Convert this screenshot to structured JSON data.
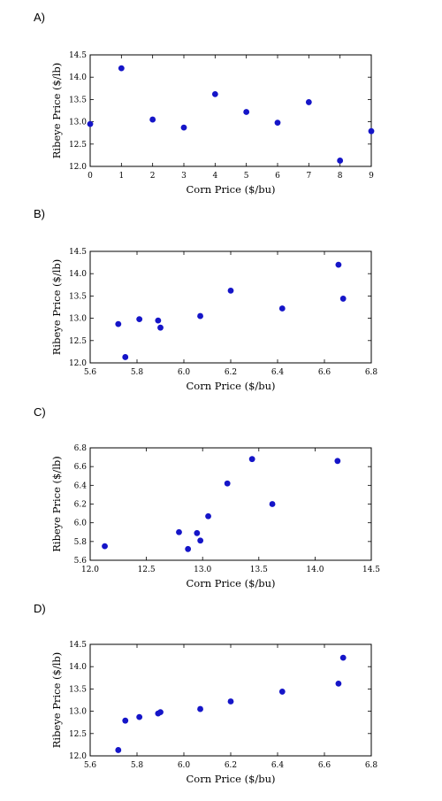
{
  "chart_data": [
    {
      "type": "scatter",
      "panel_label": "A)",
      "xlabel": "Corn Price ($/bu)",
      "ylabel": "Ribeye Price ($/lb)",
      "xlim": [
        0,
        9
      ],
      "ylim": [
        12.0,
        14.5
      ],
      "xticks": [
        "0",
        "1",
        "2",
        "3",
        "4",
        "5",
        "6",
        "7",
        "8",
        "9"
      ],
      "yticks": [
        "12.0",
        "12.5",
        "13.0",
        "13.5",
        "14.0",
        "14.5"
      ],
      "series": [
        {
          "x": [
            0,
            1,
            2,
            3,
            4,
            5,
            6,
            7,
            8,
            9
          ],
          "y": [
            12.95,
            14.2,
            13.05,
            12.87,
            13.62,
            13.22,
            12.98,
            13.44,
            12.13,
            12.79
          ]
        }
      ],
      "grid": false
    },
    {
      "type": "scatter",
      "panel_label": "B)",
      "xlabel": "Corn Price ($/bu)",
      "ylabel": "Ribeye Price ($/lb)",
      "xlim": [
        5.6,
        6.8
      ],
      "ylim": [
        12.0,
        14.5
      ],
      "xticks": [
        "5.6",
        "5.8",
        "6.0",
        "6.2",
        "6.4",
        "6.6",
        "6.8"
      ],
      "yticks": [
        "12.0",
        "12.5",
        "13.0",
        "13.5",
        "14.0",
        "14.5"
      ],
      "series": [
        {
          "x": [
            5.72,
            5.75,
            5.81,
            5.89,
            5.9,
            6.07,
            6.2,
            6.42,
            6.66,
            6.68
          ],
          "y": [
            12.87,
            12.13,
            12.98,
            12.95,
            12.79,
            13.05,
            13.62,
            13.22,
            14.2,
            13.44
          ]
        }
      ],
      "grid": false
    },
    {
      "type": "scatter",
      "panel_label": "C)",
      "xlabel": "Corn Price ($/bu)",
      "ylabel": "Ribeye Price ($/lb)",
      "xlim": [
        12.0,
        14.5
      ],
      "ylim": [
        5.6,
        6.8
      ],
      "xticks": [
        "12.0",
        "12.5",
        "13.0",
        "13.5",
        "14.0",
        "14.5"
      ],
      "yticks": [
        "5.6",
        "5.8",
        "6.0",
        "6.2",
        "6.4",
        "6.6",
        "6.8"
      ],
      "series": [
        {
          "x": [
            12.13,
            12.79,
            12.87,
            12.95,
            12.98,
            13.05,
            13.22,
            13.44,
            13.62,
            14.2
          ],
          "y": [
            5.75,
            5.9,
            5.72,
            5.89,
            5.81,
            6.07,
            6.42,
            6.68,
            6.2,
            6.66
          ]
        }
      ],
      "grid": false
    },
    {
      "type": "scatter",
      "panel_label": "D)",
      "xlabel": "Corn Price ($/bu)",
      "ylabel": "Ribeye Price ($/lb)",
      "xlim": [
        5.6,
        6.8
      ],
      "ylim": [
        12.0,
        14.5
      ],
      "xticks": [
        "5.6",
        "5.8",
        "6.0",
        "6.2",
        "6.4",
        "6.6",
        "6.8"
      ],
      "yticks": [
        "12.0",
        "12.5",
        "13.0",
        "13.5",
        "14.0",
        "14.5"
      ],
      "series": [
        {
          "x": [
            5.72,
            5.75,
            5.81,
            5.89,
            5.9,
            6.07,
            6.2,
            6.42,
            6.66,
            6.68
          ],
          "y": [
            12.13,
            12.79,
            12.87,
            12.95,
            12.98,
            13.05,
            13.22,
            13.44,
            13.62,
            14.2
          ]
        }
      ],
      "grid": false
    }
  ]
}
